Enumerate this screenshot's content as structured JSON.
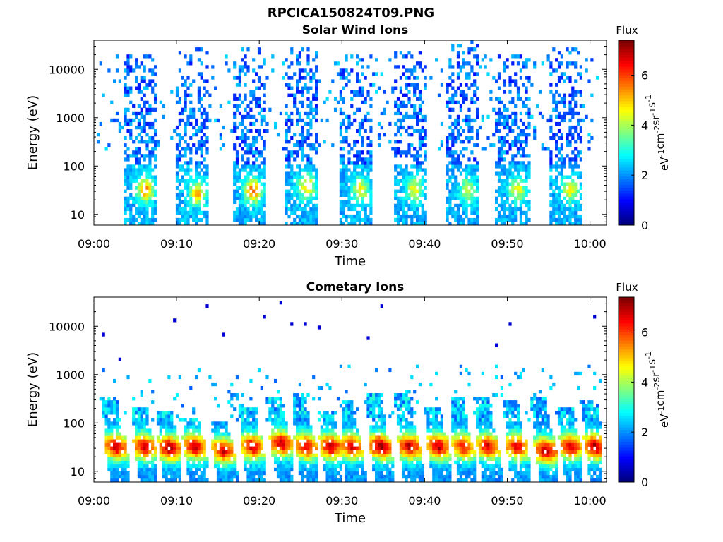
{
  "figure": {
    "title": "RPCICA150824T09.PNG"
  },
  "chart_data": [
    {
      "type": "heatmap",
      "title": "Solar Wind Ions",
      "xlabel": "Time",
      "ylabel": "Energy (eV)",
      "yscale": "log",
      "xlim": [
        "09:00",
        "10:02"
      ],
      "ylim": [
        6,
        40000
      ],
      "xticks": [
        "09:00",
        "09:10",
        "09:20",
        "09:30",
        "09:40",
        "09:50",
        "10:00"
      ],
      "yticks": [
        "10",
        "100",
        "1000",
        "10000"
      ],
      "colorbar": {
        "title": "Flux",
        "label": "eV-1cm-2sr-1s-1",
        "label_parts": [
          "eV",
          "-1",
          "cm",
          "-2",
          "sr",
          "-1",
          "s",
          "-1"
        ],
        "range": [
          0,
          7.4
        ],
        "ticks": [
          "0",
          "2",
          "4",
          "6"
        ],
        "colormap": "jet"
      },
      "bursts": [
        {
          "center_min": 5.5,
          "peak_energy_eV": 30,
          "peak_flux": 5.5,
          "max_energy_eV": 20000
        },
        {
          "center_min": 11.8,
          "peak_energy_eV": 25,
          "peak_flux": 5.0,
          "max_energy_eV": 25000
        },
        {
          "center_min": 18.5,
          "peak_energy_eV": 28,
          "peak_flux": 5.8,
          "max_energy_eV": 25000
        },
        {
          "center_min": 25.0,
          "peak_energy_eV": 35,
          "peak_flux": 5.0,
          "max_energy_eV": 28000
        },
        {
          "center_min": 31.5,
          "peak_energy_eV": 30,
          "peak_flux": 4.6,
          "max_energy_eV": 20000
        },
        {
          "center_min": 38.0,
          "peak_energy_eV": 30,
          "peak_flux": 4.5,
          "max_energy_eV": 22000
        },
        {
          "center_min": 44.5,
          "peak_energy_eV": 30,
          "peak_flux": 4.2,
          "max_energy_eV": 35000
        },
        {
          "center_min": 50.5,
          "peak_energy_eV": 30,
          "peak_flux": 4.5,
          "max_energy_eV": 18000
        },
        {
          "center_min": 56.8,
          "peak_energy_eV": 30,
          "peak_flux": 4.6,
          "max_energy_eV": 28000
        }
      ]
    },
    {
      "type": "heatmap",
      "title": "Cometary Ions",
      "xlabel": "Time",
      "ylabel": "Energy (eV)",
      "yscale": "log",
      "xlim": [
        "09:00",
        "10:02"
      ],
      "ylim": [
        6,
        40000
      ],
      "xticks": [
        "09:00",
        "09:10",
        "09:20",
        "09:30",
        "09:40",
        "09:50",
        "10:00"
      ],
      "yticks": [
        "10",
        "100",
        "1000",
        "10000"
      ],
      "colorbar": {
        "title": "Flux",
        "label": "eV-1cm-2sr-1s-1",
        "label_parts": [
          "eV",
          "-1",
          "cm",
          "-2",
          "sr",
          "-1",
          "s",
          "-1"
        ],
        "range": [
          0,
          7.4
        ],
        "ticks": [
          "0",
          "2",
          "4",
          "6"
        ],
        "colormap": "jet"
      },
      "bursts": [
        {
          "center_min": 2.5,
          "peak_energy_eV": 30,
          "peak_flux": 7.0,
          "max_energy_eV": 300
        },
        {
          "center_min": 6.0,
          "peak_energy_eV": 30,
          "peak_flux": 7.0,
          "max_energy_eV": 200
        },
        {
          "center_min": 9.0,
          "peak_energy_eV": 28,
          "peak_flux": 7.2,
          "max_energy_eV": 150
        },
        {
          "center_min": 12.0,
          "peak_energy_eV": 30,
          "peak_flux": 7.0,
          "max_energy_eV": 120
        },
        {
          "center_min": 15.5,
          "peak_energy_eV": 25,
          "peak_flux": 6.8,
          "max_energy_eV": 100
        },
        {
          "center_min": 19.0,
          "peak_energy_eV": 30,
          "peak_flux": 6.8,
          "max_energy_eV": 200
        },
        {
          "center_min": 22.5,
          "peak_energy_eV": 35,
          "peak_flux": 7.0,
          "max_energy_eV": 300
        },
        {
          "center_min": 25.5,
          "peak_energy_eV": 30,
          "peak_flux": 6.8,
          "max_energy_eV": 350
        },
        {
          "center_min": 28.5,
          "peak_energy_eV": 30,
          "peak_flux": 7.0,
          "max_energy_eV": 150
        },
        {
          "center_min": 31.0,
          "peak_energy_eV": 30,
          "peak_flux": 6.8,
          "max_energy_eV": 250
        },
        {
          "center_min": 34.5,
          "peak_energy_eV": 30,
          "peak_flux": 7.3,
          "max_energy_eV": 400
        },
        {
          "center_min": 38.0,
          "peak_energy_eV": 30,
          "peak_flux": 7.0,
          "max_energy_eV": 350
        },
        {
          "center_min": 41.5,
          "peak_energy_eV": 30,
          "peak_flux": 7.0,
          "max_energy_eV": 200
        },
        {
          "center_min": 44.5,
          "peak_energy_eV": 30,
          "peak_flux": 6.5,
          "max_energy_eV": 300
        },
        {
          "center_min": 47.5,
          "peak_energy_eV": 30,
          "peak_flux": 6.8,
          "max_energy_eV": 300
        },
        {
          "center_min": 51.0,
          "peak_energy_eV": 30,
          "peak_flux": 6.8,
          "max_energy_eV": 250
        },
        {
          "center_min": 54.5,
          "peak_energy_eV": 25,
          "peak_flux": 7.2,
          "max_energy_eV": 300
        },
        {
          "center_min": 57.5,
          "peak_energy_eV": 30,
          "peak_flux": 6.8,
          "max_energy_eV": 200
        },
        {
          "center_min": 60.5,
          "peak_energy_eV": 30,
          "peak_flux": 7.2,
          "max_energy_eV": 250
        }
      ]
    }
  ]
}
